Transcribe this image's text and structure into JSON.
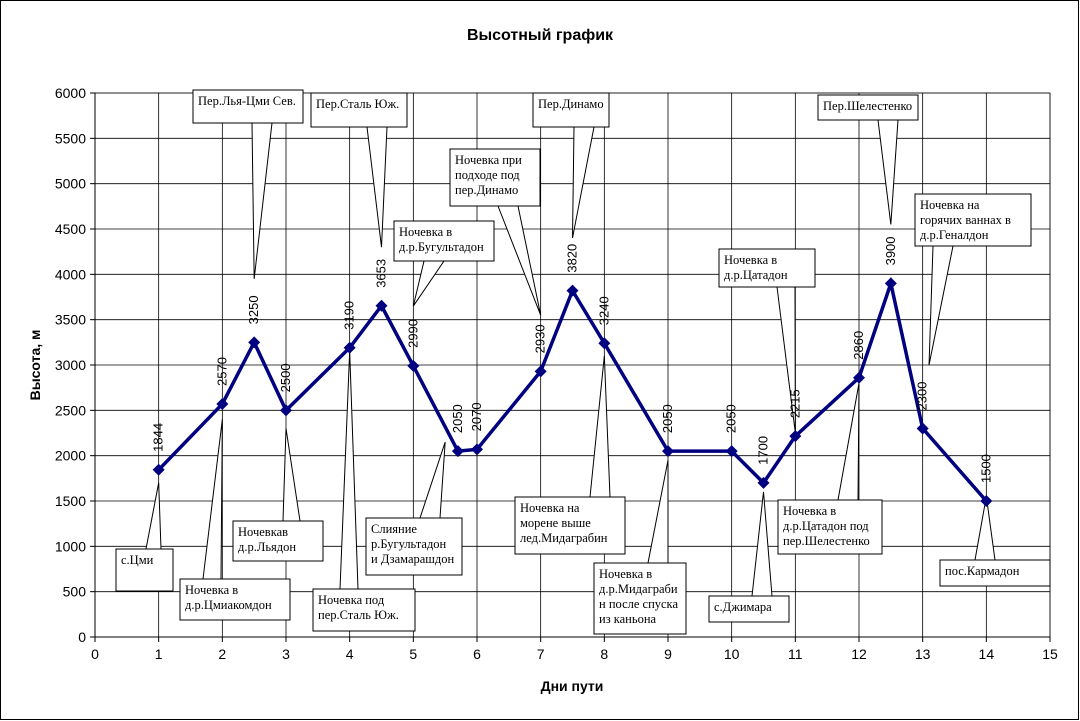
{
  "chart_data": {
    "type": "line",
    "title": "Высотный график",
    "xlabel": "Дни пути",
    "ylabel": "Высота, м",
    "xlim": [
      0,
      15
    ],
    "ylim": [
      0,
      6000
    ],
    "x_ticks": [
      0,
      1,
      2,
      3,
      4,
      5,
      6,
      7,
      8,
      9,
      10,
      11,
      12,
      13,
      14,
      15
    ],
    "y_ticks": [
      0,
      500,
      1000,
      1500,
      2000,
      2500,
      3000,
      3500,
      4000,
      4500,
      5000,
      5500,
      6000
    ],
    "grid": true,
    "legend": "none",
    "color": "#000080",
    "series": [
      {
        "points": [
          {
            "x": 1,
            "y": 1844,
            "label": "1844"
          },
          {
            "x": 2,
            "y": 2570,
            "label": "2570"
          },
          {
            "x": 2.5,
            "y": 3250,
            "label": "3250"
          },
          {
            "x": 3,
            "y": 2500,
            "label": "2500"
          },
          {
            "x": 4,
            "y": 3190,
            "label": "3190"
          },
          {
            "x": 4.5,
            "y": 3653,
            "label": "3653"
          },
          {
            "x": 5,
            "y": 2990,
            "label": "2990"
          },
          {
            "x": 5.7,
            "y": 2050,
            "label": "2050"
          },
          {
            "x": 6,
            "y": 2070,
            "label": "2070"
          },
          {
            "x": 7,
            "y": 2930,
            "label": "2930"
          },
          {
            "x": 7.5,
            "y": 3820,
            "label": "3820"
          },
          {
            "x": 8,
            "y": 3240,
            "label": "3240"
          },
          {
            "x": 9,
            "y": 2050,
            "label": "2050"
          },
          {
            "x": 10,
            "y": 2050,
            "label": "2050"
          },
          {
            "x": 10.5,
            "y": 1700,
            "label": "1700"
          },
          {
            "x": 11,
            "y": 2215,
            "label": "2215"
          },
          {
            "x": 12,
            "y": 2860,
            "label": "2860"
          },
          {
            "x": 12.5,
            "y": 3900,
            "label": "3900"
          },
          {
            "x": 13,
            "y": 2300,
            "label": "2300"
          },
          {
            "x": 14,
            "y": 1500,
            "label": "1500"
          }
        ]
      }
    ],
    "annotations": [
      {
        "point": 0,
        "lines": [
          "с.Цми"
        ]
      },
      {
        "point": 1,
        "lines": [
          "Ночевка в",
          "д.р.Цмиакомдон"
        ]
      },
      {
        "point": 2,
        "lines": [
          "Пер.Лья-Цми  Сев."
        ]
      },
      {
        "point": 3,
        "lines": [
          "Ночевкав",
          "д.р.Льядон"
        ]
      },
      {
        "point": 4,
        "lines": [
          "Ночевка под",
          "пер.Сталь Юж."
        ]
      },
      {
        "point": 5,
        "lines": [
          "Пер.Сталь Юж."
        ]
      },
      {
        "point": 6,
        "lines": [
          "Ночевка в",
          "д.р.Бугультадон"
        ]
      },
      {
        "point": 7,
        "lines": [
          "Слияние",
          "р.Бугультадон",
          "и Дзамарашдон"
        ]
      },
      {
        "point": 9,
        "lines": [
          "Ночевка при",
          "подходе под",
          "пер.Динамо"
        ]
      },
      {
        "point": 10,
        "lines": [
          "Пер.Динамо"
        ]
      },
      {
        "point": 11,
        "lines": [
          "Ночевка на",
          "морене выше",
          "лед.Мидаграбин"
        ]
      },
      {
        "point": 12,
        "lines": [
          "Ночевка в",
          "д.р.Мидаграби",
          "н после спуска",
          "из каньона"
        ]
      },
      {
        "point": 14,
        "lines": [
          "с.Джимара"
        ]
      },
      {
        "point": 15,
        "lines": [
          "Ночевка в",
          "д.р.Цатадон"
        ]
      },
      {
        "point": 16,
        "lines": [
          "Ночевка в",
          "д.р.Цатадон под",
          "пер.Шелестенко"
        ]
      },
      {
        "point": 17,
        "lines": [
          "Пер.Шелестенко"
        ]
      },
      {
        "point": 18,
        "lines": [
          "Ночевка на",
          "горячих ваннах в",
          "д.р.Генaлдон"
        ]
      },
      {
        "point": 19,
        "lines": [
          "пос.Кармадон"
        ]
      }
    ]
  }
}
